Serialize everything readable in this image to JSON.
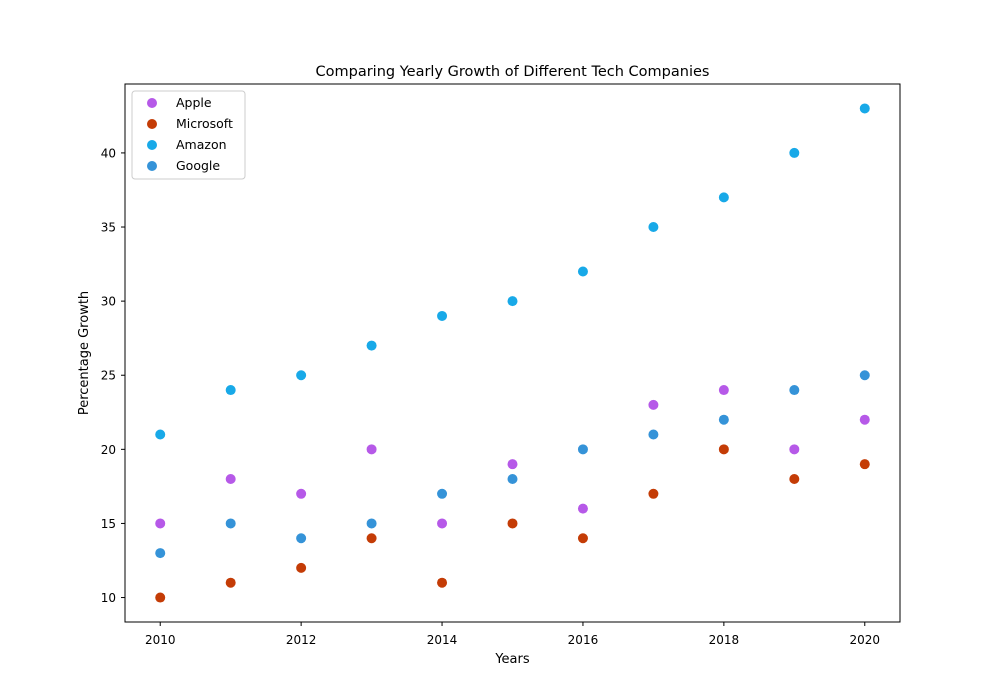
{
  "chart_data": {
    "type": "scatter",
    "title": "Comparing Yearly Growth of Different Tech Companies",
    "xlabel": "Years",
    "ylabel": "Percentage Growth",
    "xlim": [
      2009.5,
      2020.5
    ],
    "ylim": [
      8.35,
      44.65
    ],
    "xticks": [
      2010,
      2012,
      2014,
      2016,
      2018,
      2020
    ],
    "yticks": [
      10,
      15,
      20,
      25,
      30,
      35,
      40
    ],
    "grid": false,
    "legend_position": "top-left",
    "x": [
      2010,
      2011,
      2012,
      2013,
      2014,
      2015,
      2016,
      2017,
      2018,
      2019,
      2020
    ],
    "series": [
      {
        "name": "Apple",
        "color": "#b659e8",
        "values": [
          15,
          18,
          17,
          20,
          15,
          19,
          16,
          23,
          24,
          20,
          22
        ]
      },
      {
        "name": "Microsoft",
        "color": "#c43c06",
        "values": [
          10,
          11,
          12,
          14,
          11,
          15,
          14,
          17,
          20,
          18,
          19
        ]
      },
      {
        "name": "Amazon",
        "color": "#18a9e8",
        "values": [
          21,
          24,
          25,
          27,
          29,
          30,
          32,
          35,
          37,
          40,
          43
        ]
      },
      {
        "name": "Google",
        "color": "#3593d8",
        "values": [
          13,
          15,
          14,
          15,
          17,
          18,
          20,
          21,
          22,
          24,
          25
        ]
      }
    ]
  }
}
